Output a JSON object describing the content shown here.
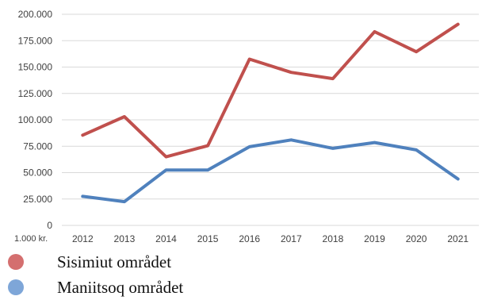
{
  "chart_data": {
    "type": "line",
    "categories": [
      "2012",
      "2013",
      "2014",
      "2015",
      "2016",
      "2017",
      "2018",
      "2019",
      "2020",
      "2021"
    ],
    "series": [
      {
        "name": "Sisimiut området",
        "color": "#c0504d",
        "values": [
          85500,
          103000,
          65000,
          75500,
          157500,
          145000,
          139000,
          183500,
          164500,
          190500
        ]
      },
      {
        "name": "Maniitsoq området",
        "color": "#4f81bd",
        "values": [
          27500,
          22500,
          52500,
          52500,
          74500,
          81000,
          73000,
          78500,
          71500,
          44000
        ]
      }
    ],
    "yticks": [
      "0",
      "25.000",
      "50.000",
      "75.000",
      "100.000",
      "125.000",
      "150.000",
      "175.000",
      "200.000"
    ],
    "ylim": [
      0,
      200000
    ],
    "unit_label": "1.000 kr.",
    "grid": true,
    "legend_position": "bottom-left"
  }
}
